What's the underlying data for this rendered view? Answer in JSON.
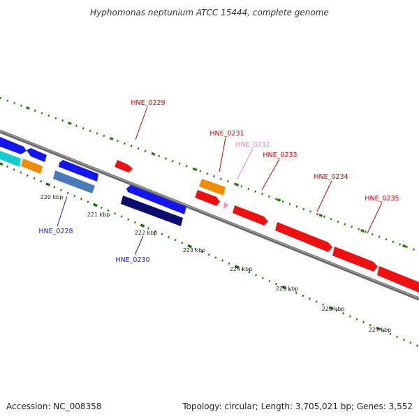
{
  "title": "Hyphomonas neptunium ATCC 15444, complete genome",
  "footer": {
    "accession": "Accession: NC_008358",
    "topology": "Topology: circular; Length: 3,705,021 bp; Genes: 3,552"
  },
  "colors": {
    "backbone": "#7a7a7a",
    "tick_outer": "#2e7d12",
    "tick_inner": "#1f6b10",
    "forward_gene": "#ee1111",
    "label_red": "#cc0000",
    "label_pink": "#f080c0",
    "label_blue": "#1a1acc"
  },
  "scale_labels": [
    "220 kbp",
    "221 kbp",
    "222 kbp",
    "223 kbp",
    "224 kbp",
    "225 kbp",
    "226 kbp",
    "227 kbp"
  ],
  "gene_labels": [
    {
      "text": "HNE_0228",
      "color": "#1a1acc"
    },
    {
      "text": "HNE_0229",
      "color": "#cc0000"
    },
    {
      "text": "HNE_0230",
      "color": "#1a1acc"
    },
    {
      "text": "HNE_0231",
      "color": "#cc0000"
    },
    {
      "text": "HNE_0232",
      "color": "#f080c0"
    },
    {
      "text": "HNE_0233",
      "color": "#cc0000"
    },
    {
      "text": "HNE_0234",
      "color": "#cc0000"
    },
    {
      "text": "HNE_0235",
      "color": "#cc0000"
    }
  ]
}
